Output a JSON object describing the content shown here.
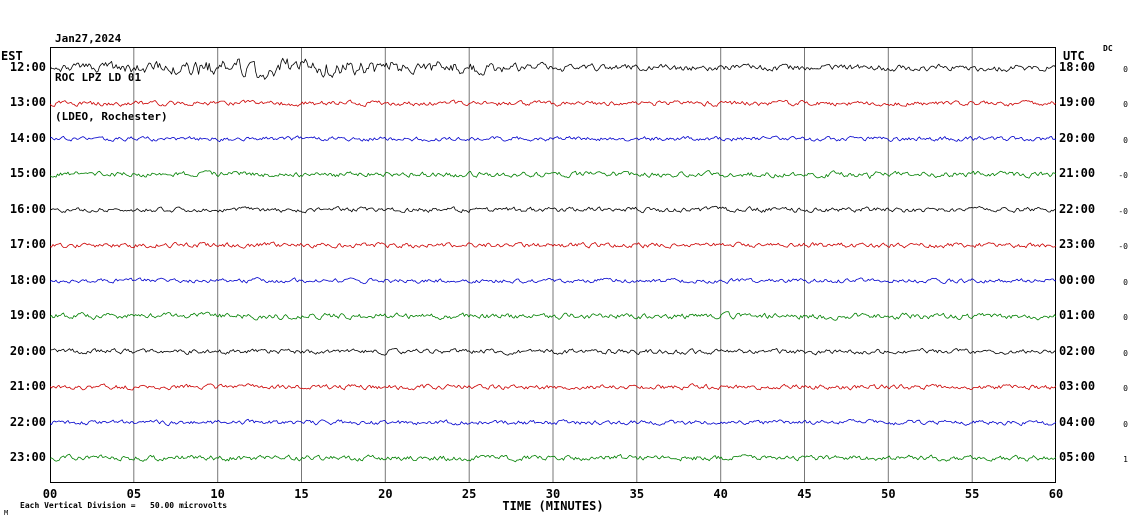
{
  "header": {
    "date": "Jan27,2024",
    "station": "ROC LPZ LD 01",
    "network": "(LDEO, Rochester)"
  },
  "axes": {
    "left_tz": "EST",
    "right_tz": "UTC",
    "dc_label": "DC",
    "xlabel": "TIME (MINUTES)"
  },
  "footer": {
    "scale_note": "Each Vertical Division =   50.00 microvolts",
    "corner_mark": "M"
  },
  "chart_data": {
    "type": "line",
    "subtype": "helicorder_seismogram",
    "title": "ROC LPZ LD 01 (LDEO, Rochester) Jan27,2024",
    "xlabel": "TIME (MINUTES)",
    "x_ticks": [
      "00",
      "05",
      "10",
      "15",
      "20",
      "25",
      "30",
      "35",
      "40",
      "45",
      "50",
      "55",
      "60"
    ],
    "x_range_minutes": [
      0,
      60
    ],
    "row_duration_minutes": 60,
    "rows": 12,
    "vertical_division_microvolts": 50.0,
    "grid": true,
    "palette": [
      "#000000",
      "#cc0000",
      "#0000cc",
      "#008000"
    ],
    "traces": [
      {
        "est": "12:00",
        "utc": "18:00",
        "color": "#000000",
        "gain": "0",
        "amp": 2.6,
        "bursts": [
          {
            "center": 0.2,
            "width": 0.13,
            "amp": 5.0
          },
          {
            "center": 0.38,
            "width": 0.1,
            "amp": 2.2
          }
        ]
      },
      {
        "est": "13:00",
        "utc": "19:00",
        "color": "#cc0000",
        "gain": "0",
        "amp": 2.0
      },
      {
        "est": "14:00",
        "utc": "20:00",
        "color": "#0000cc",
        "gain": "0",
        "amp": 1.8
      },
      {
        "est": "15:00",
        "utc": "21:00",
        "color": "#008000",
        "gain": "-0",
        "amp": 2.2,
        "spikes": [
          {
            "pos": 0.815,
            "amp": 8
          }
        ]
      },
      {
        "est": "16:00",
        "utc": "22:00",
        "color": "#000000",
        "gain": "-0",
        "amp": 2.0
      },
      {
        "est": "17:00",
        "utc": "23:00",
        "color": "#cc0000",
        "gain": "-0",
        "amp": 2.0
      },
      {
        "est": "18:00",
        "utc": "00:00",
        "color": "#0000cc",
        "gain": "0",
        "amp": 1.8
      },
      {
        "est": "19:00",
        "utc": "01:00",
        "color": "#008000",
        "gain": "0",
        "amp": 2.3
      },
      {
        "est": "20:00",
        "utc": "02:00",
        "color": "#000000",
        "gain": "0",
        "amp": 2.0
      },
      {
        "est": "21:00",
        "utc": "03:00",
        "color": "#cc0000",
        "gain": "0",
        "amp": 2.0
      },
      {
        "est": "22:00",
        "utc": "04:00",
        "color": "#0000cc",
        "gain": "0",
        "amp": 1.9
      },
      {
        "est": "23:00",
        "utc": "05:00",
        "color": "#008000",
        "gain": "1",
        "amp": 2.2
      }
    ]
  }
}
